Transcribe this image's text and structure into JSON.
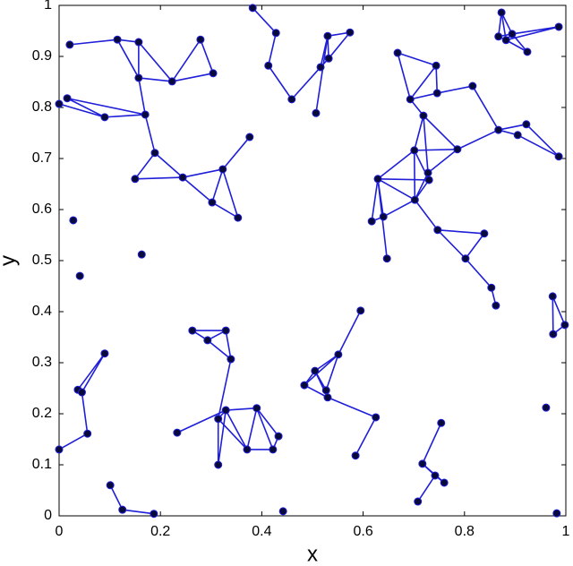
{
  "chart_data": {
    "type": "scatter",
    "x_label": "x",
    "y_label": "y",
    "xlim": [
      0,
      1
    ],
    "ylim": [
      0,
      1
    ],
    "xticks": [
      0,
      0.2,
      0.4,
      0.6,
      0.8,
      1
    ],
    "yticks": [
      0,
      0.1,
      0.2,
      0.3,
      0.4,
      0.5,
      0.6,
      0.7,
      0.8,
      0.9,
      1
    ],
    "node_color": "#0a0a3a",
    "edge_color": "#1f1fd8",
    "x": [
      0.021,
      0.115,
      0.157,
      0.157,
      0.223,
      0.279,
      0.304,
      0,
      0.016,
      0.09,
      0.17,
      0.189,
      0.15,
      0.244,
      0.323,
      0.376,
      0.302,
      0.353,
      0.382,
      0.428,
      0.413,
      0.459,
      0.507,
      0.516,
      0.53,
      0.532,
      0.574,
      0.668,
      0.744,
      0.693,
      0.746,
      0.816,
      0.719,
      0.867,
      0.922,
      0.905,
      0.986,
      0.786,
      0.701,
      0.728,
      0.73,
      0.629,
      0.702,
      0.617,
      0.64,
      0.647,
      0.747,
      0.839,
      0.802,
      0.853,
      0.862,
      0.873,
      0.867,
      0.882,
      0.894,
      0.924,
      0.986,
      0.974,
      0.975,
      0.998,
      0.09,
      0.037,
      0.045,
      0.056,
      0,
      0.263,
      0.293,
      0.329,
      0.339,
      0.314,
      0.329,
      0.39,
      0.371,
      0.233,
      0.433,
      0.422,
      0.314,
      0.595,
      0.551,
      0.505,
      0.484,
      0.527,
      0.53,
      0.625,
      0.585,
      0.754,
      0.717,
      0.742,
      0.76,
      0.708,
      0.101,
      0.125,
      0.187,
      0.028,
      0.041,
      0.163,
      0.961,
      0.982,
      0.442
    ],
    "y": [
      0.923,
      0.933,
      0.928,
      0.858,
      0.851,
      0.933,
      0.867,
      0.807,
      0.818,
      0.781,
      0.786,
      0.711,
      0.66,
      0.663,
      0.679,
      0.742,
      0.614,
      0.584,
      0.995,
      0.946,
      0.882,
      0.816,
      0.789,
      0.879,
      0.94,
      0.896,
      0.947,
      0.907,
      0.882,
      0.816,
      0.828,
      0.842,
      0.784,
      0.756,
      0.767,
      0.746,
      0.704,
      0.718,
      0.716,
      0.672,
      0.658,
      0.66,
      0.619,
      0.577,
      0.586,
      0.504,
      0.56,
      0.553,
      0.504,
      0.447,
      0.412,
      0.986,
      0.939,
      0.932,
      0.944,
      0.909,
      0.958,
      0.43,
      0.356,
      0.374,
      0.318,
      0.247,
      0.242,
      0.161,
      0.13,
      0.363,
      0.344,
      0.363,
      0.307,
      0.19,
      0.207,
      0.211,
      0.13,
      0.163,
      0.156,
      0.13,
      0.1,
      0.402,
      0.316,
      0.284,
      0.256,
      0.246,
      0.232,
      0.193,
      0.118,
      0.182,
      0.102,
      0.079,
      0.065,
      0.028,
      0.06,
      0.012,
      0.004,
      0.579,
      0.47,
      0.512,
      0.212,
      0.005,
      0.009
    ],
    "edges": [
      [
        0,
        1
      ],
      [
        1,
        2
      ],
      [
        1,
        3
      ],
      [
        2,
        3
      ],
      [
        2,
        4
      ],
      [
        3,
        4
      ],
      [
        4,
        5
      ],
      [
        5,
        6
      ],
      [
        4,
        6
      ],
      [
        7,
        9
      ],
      [
        8,
        9
      ],
      [
        8,
        10
      ],
      [
        9,
        10
      ],
      [
        3,
        10
      ],
      [
        10,
        11
      ],
      [
        11,
        12
      ],
      [
        11,
        13
      ],
      [
        12,
        13
      ],
      [
        13,
        14
      ],
      [
        13,
        16
      ],
      [
        14,
        16
      ],
      [
        14,
        17
      ],
      [
        16,
        17
      ],
      [
        14,
        15
      ],
      [
        18,
        19
      ],
      [
        19,
        20
      ],
      [
        20,
        21
      ],
      [
        21,
        23
      ],
      [
        22,
        24
      ],
      [
        23,
        25
      ],
      [
        23,
        24
      ],
      [
        24,
        25
      ],
      [
        25,
        26
      ],
      [
        24,
        26
      ],
      [
        27,
        28
      ],
      [
        27,
        29
      ],
      [
        28,
        29
      ],
      [
        28,
        30
      ],
      [
        29,
        30
      ],
      [
        29,
        32
      ],
      [
        30,
        31
      ],
      [
        31,
        33
      ],
      [
        32,
        38
      ],
      [
        32,
        39
      ],
      [
        33,
        34
      ],
      [
        33,
        35
      ],
      [
        34,
        36
      ],
      [
        35,
        36
      ],
      [
        32,
        37
      ],
      [
        37,
        38
      ],
      [
        37,
        39
      ],
      [
        38,
        40
      ],
      [
        38,
        41
      ],
      [
        38,
        42
      ],
      [
        41,
        42
      ],
      [
        41,
        40
      ],
      [
        39,
        42
      ],
      [
        40,
        42
      ],
      [
        41,
        43
      ],
      [
        41,
        44
      ],
      [
        41,
        45
      ],
      [
        43,
        44
      ],
      [
        42,
        44
      ],
      [
        42,
        46
      ],
      [
        46,
        47
      ],
      [
        47,
        48
      ],
      [
        46,
        48
      ],
      [
        48,
        49
      ],
      [
        49,
        50
      ],
      [
        33,
        37
      ],
      [
        51,
        52
      ],
      [
        51,
        53
      ],
      [
        51,
        54
      ],
      [
        52,
        53
      ],
      [
        52,
        54
      ],
      [
        53,
        54
      ],
      [
        53,
        55
      ],
      [
        54,
        55
      ],
      [
        54,
        56
      ],
      [
        53,
        56
      ],
      [
        57,
        58
      ],
      [
        57,
        59
      ],
      [
        58,
        59
      ],
      [
        60,
        61
      ],
      [
        60,
        62
      ],
      [
        61,
        62
      ],
      [
        62,
        63
      ],
      [
        63,
        64
      ],
      [
        65,
        66
      ],
      [
        65,
        67
      ],
      [
        66,
        68
      ],
      [
        67,
        68
      ],
      [
        66,
        67
      ],
      [
        68,
        69
      ],
      [
        69,
        70
      ],
      [
        69,
        72
      ],
      [
        69,
        76
      ],
      [
        70,
        71
      ],
      [
        70,
        72
      ],
      [
        71,
        72
      ],
      [
        71,
        74
      ],
      [
        72,
        75
      ],
      [
        74,
        75
      ],
      [
        73,
        70
      ],
      [
        70,
        76
      ],
      [
        71,
        75
      ],
      [
        77,
        78
      ],
      [
        78,
        79
      ],
      [
        78,
        80
      ],
      [
        78,
        81
      ],
      [
        79,
        80
      ],
      [
        79,
        81
      ],
      [
        80,
        82
      ],
      [
        81,
        82
      ],
      [
        79,
        82
      ],
      [
        82,
        83
      ],
      [
        83,
        84
      ],
      [
        85,
        86
      ],
      [
        86,
        87
      ],
      [
        86,
        88
      ],
      [
        87,
        88
      ],
      [
        87,
        89
      ],
      [
        90,
        91
      ],
      [
        91,
        92
      ]
    ]
  }
}
